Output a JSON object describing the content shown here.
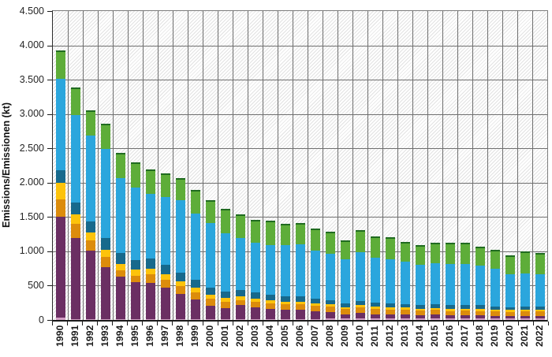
{
  "chart_data": {
    "type": "bar",
    "stacked": true,
    "title": "",
    "xlabel": "",
    "ylabel": "Emissions/Emissionen (kt)",
    "ylim": [
      0,
      4500
    ],
    "ytick_interval": 500,
    "ytick_labels": [
      "0",
      "500",
      "1.000",
      "1.500",
      "2.000",
      "2.500",
      "3.000",
      "3.500",
      "4.000",
      "4.500"
    ],
    "grid": "horizontal and vertical dark-gray gridlines on light diagonal-hatched plot background",
    "legend": "none visible",
    "x_labels_rotated_degrees": 90,
    "categories": [
      "1990",
      "1991",
      "1992",
      "1993",
      "1994",
      "1995",
      "1996",
      "1997",
      "1998",
      "1999",
      "2000",
      "2001",
      "2002",
      "2003",
      "2004",
      "2005",
      "2006",
      "2007",
      "2008",
      "2009",
      "2010",
      "2011",
      "2012",
      "2013",
      "2014",
      "2015",
      "2016",
      "2017",
      "2018",
      "2019",
      "2020",
      "2021",
      "2022"
    ],
    "series": [
      {
        "name": "pink",
        "color": "#d49fc5",
        "values": [
          30,
          15,
          12,
          10,
          8,
          8,
          8,
          8,
          8,
          8,
          8,
          8,
          12,
          12,
          12,
          12,
          12,
          12,
          20,
          20,
          25,
          25,
          25,
          25,
          25,
          25,
          25,
          25,
          25,
          25,
          25,
          25,
          25
        ]
      },
      {
        "name": "purple",
        "color": "#6b2f63",
        "values": [
          1470,
          1174,
          1000,
          754,
          618,
          540,
          532,
          462,
          373,
          287,
          200,
          161,
          203,
          175,
          152,
          136,
          136,
          113,
          97,
          66,
          82,
          59,
          51,
          51,
          47,
          51,
          39,
          43,
          39,
          32,
          28,
          32,
          32
        ]
      },
      {
        "name": "orange",
        "color": "#dc8c0c",
        "values": [
          255,
          214,
          150,
          156,
          97,
          97,
          124,
          117,
          109,
          105,
          101,
          90,
          78,
          79,
          78,
          79,
          79,
          78,
          78,
          70,
          79,
          78,
          78,
          70,
          67,
          70,
          67,
          67,
          67,
          66,
          62,
          66,
          66
        ]
      },
      {
        "name": "yellow",
        "color": "#fdc30b",
        "values": [
          245,
          136,
          110,
          105,
          97,
          89,
          86,
          85,
          78,
          70,
          54,
          58,
          51,
          46,
          51,
          39,
          39,
          39,
          39,
          32,
          35,
          31,
          32,
          36,
          27,
          28,
          31,
          31,
          31,
          31,
          31,
          31,
          31
        ]
      },
      {
        "name": "dark-blue",
        "color": "#17698c",
        "values": [
          180,
          175,
          160,
          167,
          156,
          144,
          148,
          129,
          116,
          117,
          109,
          97,
          93,
          86,
          78,
          78,
          78,
          63,
          59,
          54,
          58,
          59,
          54,
          50,
          51,
          51,
          51,
          55,
          51,
          47,
          40,
          39,
          39
        ]
      },
      {
        "name": "light-blue",
        "color": "#2ba6dd",
        "values": [
          1330,
          1275,
          1256,
          1302,
          1088,
          1050,
          940,
          991,
          1061,
          964,
          941,
          844,
          754,
          727,
          723,
          750,
          758,
          711,
          676,
          637,
          703,
          652,
          649,
          618,
          586,
          601,
          605,
          597,
          574,
          547,
          484,
          489,
          469
        ]
      },
      {
        "name": "green",
        "color": "#5ead39",
        "cap_color": "#206b20",
        "values": [
          420,
          396,
          369,
          369,
          370,
          369,
          350,
          349,
          326,
          349,
          334,
          361,
          352,
          328,
          351,
          312,
          312,
          320,
          320,
          285,
          325,
          313,
          312,
          289,
          293,
          305,
          305,
          305,
          285,
          273,
          273,
          312,
          320
        ]
      }
    ]
  }
}
